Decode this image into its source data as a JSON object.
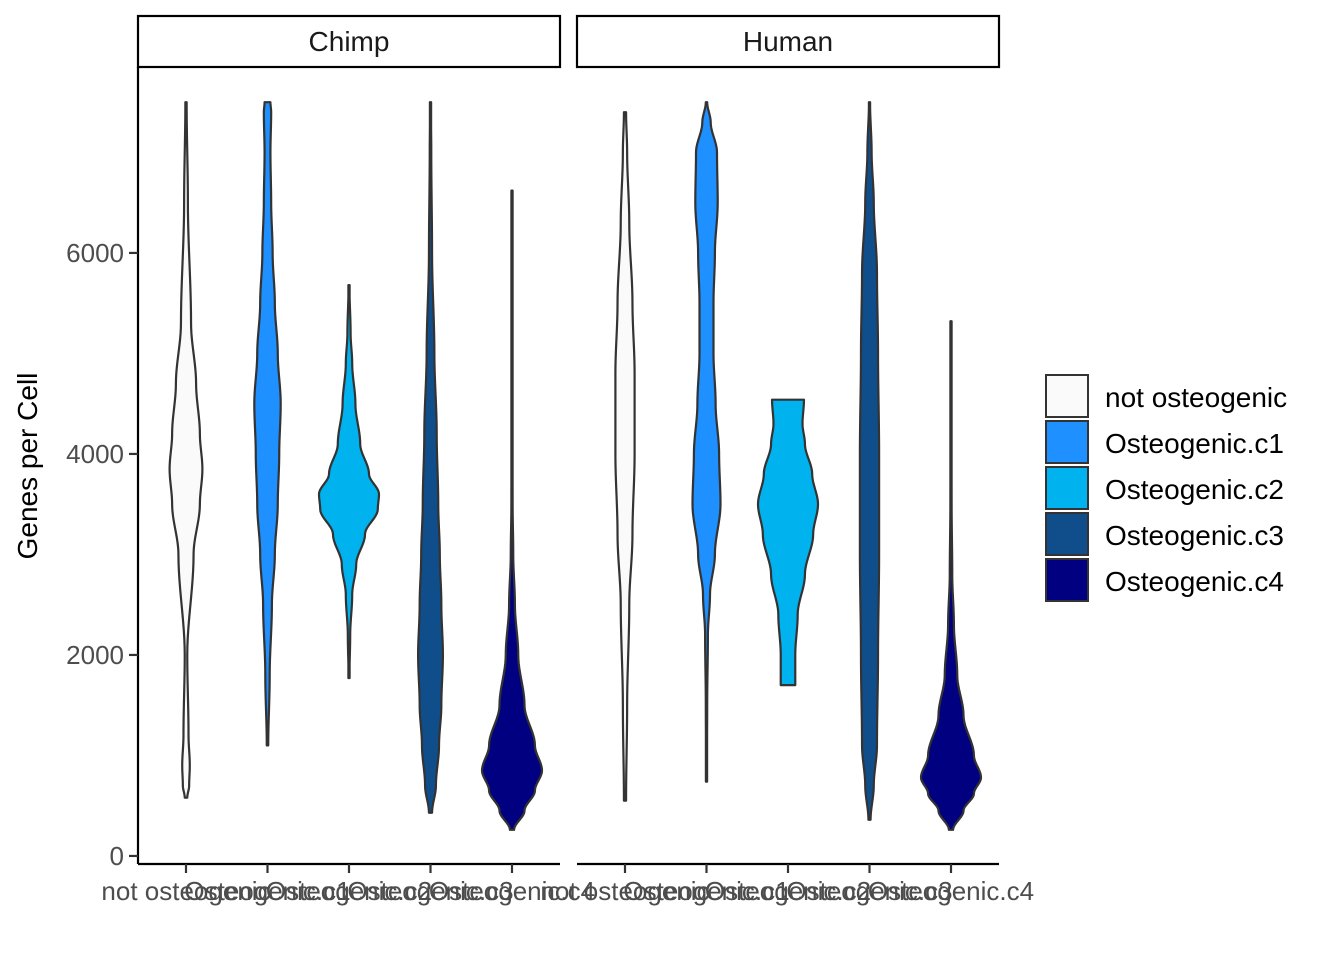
{
  "chart_data": {
    "type": "violin",
    "ylabel": "Genes per Cell",
    "xlabel": "",
    "yticks": [
      0,
      2000,
      4000,
      6000
    ],
    "ylim": [
      -80,
      7850
    ],
    "facets": [
      {
        "name": "Chimp",
        "categories": [
          "not osteogenic",
          "Osteogenic.c1",
          "Osteogenic.c2",
          "Osteogenic.c3",
          "Osteogenic.c4"
        ],
        "violins": [
          {
            "category": "not osteogenic",
            "min": 580,
            "max": 7500,
            "profile": [
              [
                580,
                0.02
              ],
              [
                700,
                0.05
              ],
              [
                900,
                0.06
              ],
              [
                1200,
                0.04
              ],
              [
                2000,
                0.02
              ],
              [
                3000,
                0.12
              ],
              [
                3500,
                0.22
              ],
              [
                3850,
                0.26
              ],
              [
                4200,
                0.22
              ],
              [
                4700,
                0.16
              ],
              [
                5300,
                0.08
              ],
              [
                6500,
                0.03
              ],
              [
                7500,
                0.01
              ]
            ]
          },
          {
            "category": "Osteogenic.c1",
            "min": 1100,
            "max": 7500,
            "profile": [
              [
                1100,
                0.01
              ],
              [
                1800,
                0.03
              ],
              [
                2500,
                0.06
              ],
              [
                3000,
                0.1
              ],
              [
                3500,
                0.14
              ],
              [
                4000,
                0.16
              ],
              [
                4500,
                0.18
              ],
              [
                5000,
                0.14
              ],
              [
                5500,
                0.1
              ],
              [
                6000,
                0.07
              ],
              [
                6500,
                0.05
              ],
              [
                7000,
                0.04
              ],
              [
                7400,
                0.05
              ],
              [
                7500,
                0.04
              ]
            ]
          },
          {
            "category": "Osteogenic.c2",
            "min": 1770,
            "max": 5680,
            "profile": [
              [
                1770,
                0.01
              ],
              [
                2200,
                0.03
              ],
              [
                2600,
                0.08
              ],
              [
                2900,
                0.18
              ],
              [
                3200,
                0.4
              ],
              [
                3450,
                0.72
              ],
              [
                3600,
                0.75
              ],
              [
                3800,
                0.5
              ],
              [
                4100,
                0.28
              ],
              [
                4500,
                0.16
              ],
              [
                4900,
                0.08
              ],
              [
                5200,
                0.04
              ],
              [
                5680,
                0.01
              ]
            ]
          },
          {
            "category": "Osteogenic.c3",
            "min": 430,
            "max": 7500,
            "profile": [
              [
                430,
                0.02
              ],
              [
                700,
                0.07
              ],
              [
                1100,
                0.11
              ],
              [
                1500,
                0.14
              ],
              [
                2000,
                0.16
              ],
              [
                2500,
                0.14
              ],
              [
                3000,
                0.12
              ],
              [
                3500,
                0.1
              ],
              [
                4200,
                0.08
              ],
              [
                5000,
                0.05
              ],
              [
                6000,
                0.02
              ],
              [
                7000,
                0.01
              ],
              [
                7500,
                0.005
              ]
            ]
          },
          {
            "category": "Osteogenic.c4",
            "min": 260,
            "max": 6620,
            "profile": [
              [
                260,
                0.05
              ],
              [
                450,
                0.3
              ],
              [
                650,
                0.55
              ],
              [
                850,
                0.72
              ],
              [
                1100,
                0.55
              ],
              [
                1500,
                0.3
              ],
              [
                2000,
                0.15
              ],
              [
                2500,
                0.07
              ],
              [
                3000,
                0.03
              ],
              [
                3500,
                0.015
              ],
              [
                4500,
                0.008
              ],
              [
                5500,
                0.005
              ],
              [
                6620,
                0.004
              ]
            ]
          }
        ]
      },
      {
        "name": "Human",
        "categories": [
          "not osteogenic",
          "Osteogenic.c1",
          "Osteogenic.c2",
          "Osteogenic.c3",
          "Osteogenic.c4"
        ],
        "violins": [
          {
            "category": "not osteogenic",
            "min": 550,
            "max": 7400,
            "profile": [
              [
                550,
                0.01
              ],
              [
                1500,
                0.02
              ],
              [
                2500,
                0.04
              ],
              [
                3200,
                0.07
              ],
              [
                4000,
                0.09
              ],
              [
                4800,
                0.09
              ],
              [
                5500,
                0.07
              ],
              [
                6300,
                0.04
              ],
              [
                7000,
                0.02
              ],
              [
                7400,
                0.01
              ]
            ]
          },
          {
            "category": "Osteogenic.c1",
            "min": 740,
            "max": 7500,
            "profile": [
              [
                740,
                0.005
              ],
              [
                1500,
                0.01
              ],
              [
                2200,
                0.02
              ],
              [
                2600,
                0.05
              ],
              [
                3000,
                0.12
              ],
              [
                3500,
                0.2
              ],
              [
                4000,
                0.18
              ],
              [
                4500,
                0.13
              ],
              [
                5000,
                0.1
              ],
              [
                5500,
                0.1
              ],
              [
                6000,
                0.12
              ],
              [
                6500,
                0.16
              ],
              [
                7000,
                0.15
              ],
              [
                7300,
                0.06
              ],
              [
                7500,
                0.01
              ]
            ]
          },
          {
            "category": "Osteogenic.c2",
            "min": 1700,
            "max": 4540,
            "profile": [
              [
                1700,
                0.15
              ],
              [
                2000,
                0.15
              ],
              [
                2400,
                0.2
              ],
              [
                2800,
                0.35
              ],
              [
                3200,
                0.52
              ],
              [
                3500,
                0.62
              ],
              [
                3800,
                0.5
              ],
              [
                4100,
                0.35
              ],
              [
                4300,
                0.3
              ],
              [
                4540,
                0.33
              ]
            ]
          },
          {
            "category": "Osteogenic.c3",
            "min": 360,
            "max": 7500,
            "profile": [
              [
                360,
                0.01
              ],
              [
                700,
                0.04
              ],
              [
                1100,
                0.07
              ],
              [
                2000,
                0.08
              ],
              [
                3000,
                0.09
              ],
              [
                4000,
                0.09
              ],
              [
                5000,
                0.08
              ],
              [
                5800,
                0.07
              ],
              [
                6500,
                0.04
              ],
              [
                7000,
                0.02
              ],
              [
                7500,
                0.005
              ]
            ]
          },
          {
            "category": "Osteogenic.c4",
            "min": 260,
            "max": 5320,
            "profile": [
              [
                260,
                0.05
              ],
              [
                450,
                0.3
              ],
              [
                620,
                0.55
              ],
              [
                780,
                0.72
              ],
              [
                1000,
                0.55
              ],
              [
                1400,
                0.3
              ],
              [
                1800,
                0.15
              ],
              [
                2300,
                0.07
              ],
              [
                2800,
                0.03
              ],
              [
                3500,
                0.015
              ],
              [
                4500,
                0.008
              ],
              [
                5320,
                0.004
              ]
            ]
          }
        ]
      }
    ],
    "colors": {
      "not osteogenic": "#fafafa",
      "Osteogenic.c1": "#1e90ff",
      "Osteogenic.c2": "#00b2ee",
      "Osteogenic.c3": "#104e8b",
      "Osteogenic.c4": "#000080"
    },
    "legend": {
      "placement": "right",
      "entries": [
        "not osteogenic",
        "Osteogenic.c1",
        "Osteogenic.c2",
        "Osteogenic.c3",
        "Osteogenic.c4"
      ]
    },
    "grid": false
  }
}
